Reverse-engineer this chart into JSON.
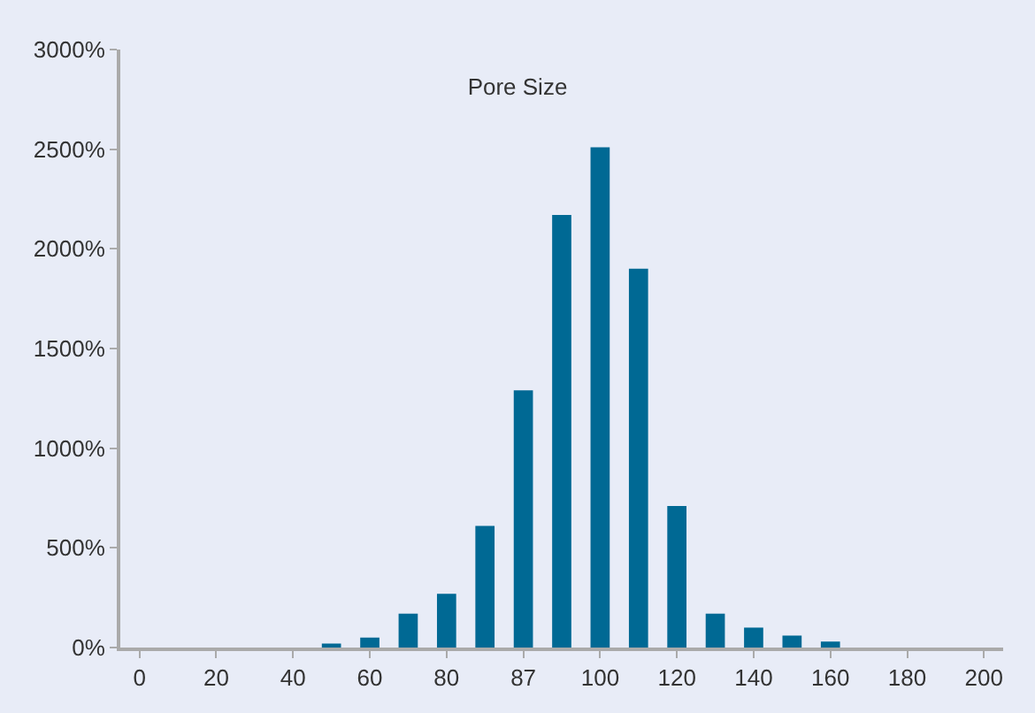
{
  "chart_data": {
    "type": "bar",
    "title": "Pore Size",
    "categories": [
      "0",
      null,
      "20",
      null,
      "40",
      null,
      "60",
      null,
      "80",
      null,
      "87",
      null,
      "100",
      null,
      "120",
      null,
      "140",
      null,
      "160",
      null,
      "180",
      null,
      "200"
    ],
    "values": [
      0,
      0,
      0,
      0,
      0,
      20,
      50,
      170,
      270,
      610,
      1290,
      2170,
      2510,
      1900,
      710,
      170,
      100,
      60,
      30,
      0,
      0,
      0,
      0
    ],
    "color": "#006994",
    "ylim": [
      0,
      3000
    ],
    "yticks": [
      {
        "value": 0,
        "label": "0%"
      },
      {
        "value": 500,
        "label": "500%"
      },
      {
        "value": 1000,
        "label": "1000%"
      },
      {
        "value": 1500,
        "label": "1500%"
      },
      {
        "value": 2000,
        "label": "2000%"
      },
      {
        "value": 2500,
        "label": "2500%"
      },
      {
        "value": 3000,
        "label": "3000%"
      }
    ],
    "grid": false
  }
}
